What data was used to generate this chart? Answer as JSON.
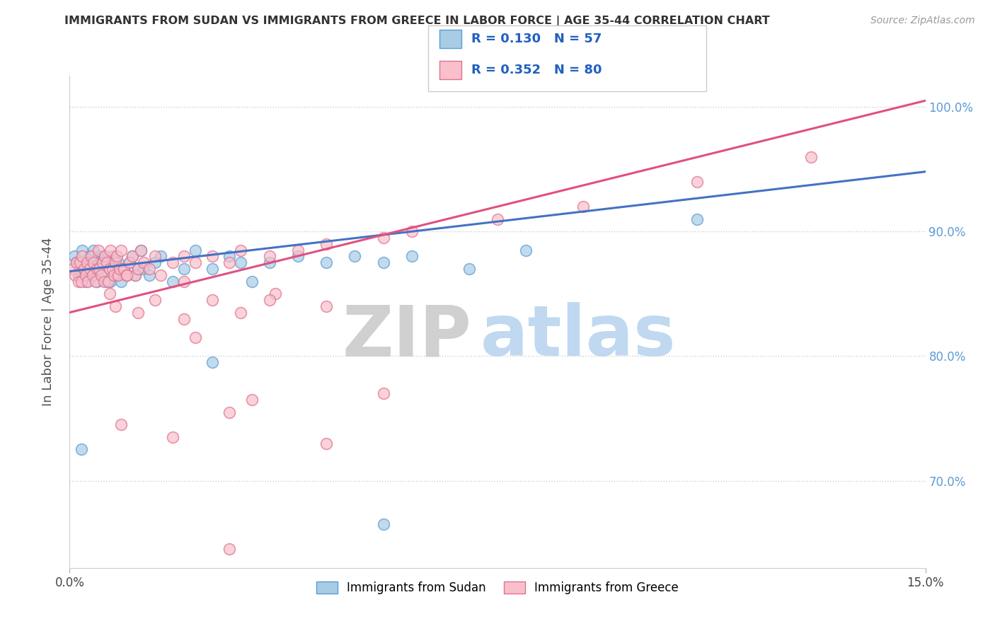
{
  "title": "IMMIGRANTS FROM SUDAN VS IMMIGRANTS FROM GREECE IN LABOR FORCE | AGE 35-44 CORRELATION CHART",
  "source": "Source: ZipAtlas.com",
  "ylabel": "In Labor Force | Age 35-44",
  "legend_label_sudan": "Immigrants from Sudan",
  "legend_label_greece": "Immigrants from Greece",
  "R_sudan": 0.13,
  "N_sudan": 57,
  "R_greece": 0.352,
  "N_greece": 80,
  "xlim": [
    0.0,
    15.0
  ],
  "ylim": [
    63.0,
    102.5
  ],
  "yticks": [
    70.0,
    80.0,
    90.0,
    100.0
  ],
  "ytick_labels": [
    "70.0%",
    "80.0%",
    "90.0%",
    "100.0%"
  ],
  "color_sudan": "#a8cce4",
  "color_greece": "#f9c0cb",
  "edge_color_sudan": "#5b9bd5",
  "edge_color_greece": "#e07090",
  "line_color_sudan": "#4472c4",
  "line_color_greece": "#e05080",
  "sudan_line_x0": 0.0,
  "sudan_line_y0": 86.8,
  "sudan_line_x1": 15.0,
  "sudan_line_y1": 94.8,
  "greece_line_x0": 0.0,
  "greece_line_y0": 83.5,
  "greece_line_x1": 15.0,
  "greece_line_y1": 100.5,
  "watermark_ZIP_color": "#d0d0d0",
  "watermark_atlas_color": "#c0d8f0",
  "sudan_pts_x": [
    0.08,
    0.12,
    0.15,
    0.18,
    0.22,
    0.25,
    0.28,
    0.3,
    0.35,
    0.38,
    0.4,
    0.42,
    0.45,
    0.48,
    0.5,
    0.52,
    0.55,
    0.58,
    0.6,
    0.65,
    0.7,
    0.72,
    0.75,
    0.8,
    0.82,
    0.85,
    0.9,
    0.95,
    1.0,
    1.05,
    1.1,
    1.15,
    1.2,
    1.25,
    1.3,
    1.4,
    1.5,
    1.6,
    1.8,
    2.0,
    2.2,
    2.5,
    2.8,
    3.0,
    3.2,
    3.5,
    4.0,
    4.5,
    5.0,
    5.5,
    6.0,
    7.0,
    8.0,
    0.2,
    2.5,
    5.5,
    11.0
  ],
  "sudan_pts_y": [
    88.0,
    87.5,
    86.5,
    87.0,
    88.5,
    87.0,
    86.0,
    87.5,
    88.0,
    86.5,
    87.0,
    88.5,
    87.5,
    86.0,
    87.0,
    88.0,
    86.5,
    87.5,
    88.0,
    86.0,
    87.5,
    86.0,
    88.0,
    87.0,
    86.5,
    87.5,
    86.0,
    87.0,
    86.5,
    87.5,
    88.0,
    86.5,
    87.0,
    88.5,
    87.0,
    86.5,
    87.5,
    88.0,
    86.0,
    87.0,
    88.5,
    87.0,
    88.0,
    87.5,
    86.0,
    87.5,
    88.0,
    87.5,
    88.0,
    87.5,
    88.0,
    87.0,
    88.5,
    72.5,
    79.5,
    66.5,
    91.0
  ],
  "greece_pts_x": [
    0.06,
    0.1,
    0.12,
    0.15,
    0.18,
    0.2,
    0.22,
    0.25,
    0.28,
    0.3,
    0.32,
    0.35,
    0.38,
    0.4,
    0.42,
    0.45,
    0.48,
    0.5,
    0.52,
    0.55,
    0.58,
    0.6,
    0.62,
    0.65,
    0.68,
    0.7,
    0.72,
    0.75,
    0.78,
    0.8,
    0.82,
    0.85,
    0.88,
    0.9,
    0.95,
    1.0,
    1.05,
    1.1,
    1.15,
    1.2,
    1.25,
    1.3,
    1.4,
    1.5,
    1.6,
    1.8,
    2.0,
    2.2,
    2.5,
    2.8,
    3.0,
    3.5,
    4.0,
    4.5,
    5.5,
    6.0,
    7.5,
    9.0,
    11.0,
    13.0,
    0.8,
    1.5,
    2.0,
    2.5,
    3.0,
    3.6,
    4.5,
    2.8,
    1.8,
    0.9,
    3.2,
    5.5,
    4.5,
    2.2,
    1.2,
    2.8,
    0.7,
    1.0,
    3.5,
    2.0
  ],
  "greece_pts_y": [
    87.0,
    86.5,
    87.5,
    86.0,
    87.5,
    86.0,
    88.0,
    87.0,
    86.5,
    87.5,
    86.0,
    87.0,
    88.0,
    86.5,
    87.5,
    86.0,
    87.0,
    88.5,
    87.0,
    86.5,
    87.5,
    86.0,
    88.0,
    87.5,
    86.0,
    87.0,
    88.5,
    87.0,
    86.5,
    87.5,
    88.0,
    86.5,
    87.0,
    88.5,
    87.0,
    86.5,
    87.5,
    88.0,
    86.5,
    87.0,
    88.5,
    87.5,
    87.0,
    88.0,
    86.5,
    87.5,
    88.0,
    87.5,
    88.0,
    87.5,
    88.5,
    88.0,
    88.5,
    89.0,
    89.5,
    90.0,
    91.0,
    92.0,
    94.0,
    96.0,
    84.0,
    84.5,
    83.0,
    84.5,
    83.5,
    85.0,
    84.0,
    75.5,
    73.5,
    74.5,
    76.5,
    77.0,
    73.0,
    81.5,
    83.5,
    64.5,
    85.0,
    86.5,
    84.5,
    86.0
  ]
}
